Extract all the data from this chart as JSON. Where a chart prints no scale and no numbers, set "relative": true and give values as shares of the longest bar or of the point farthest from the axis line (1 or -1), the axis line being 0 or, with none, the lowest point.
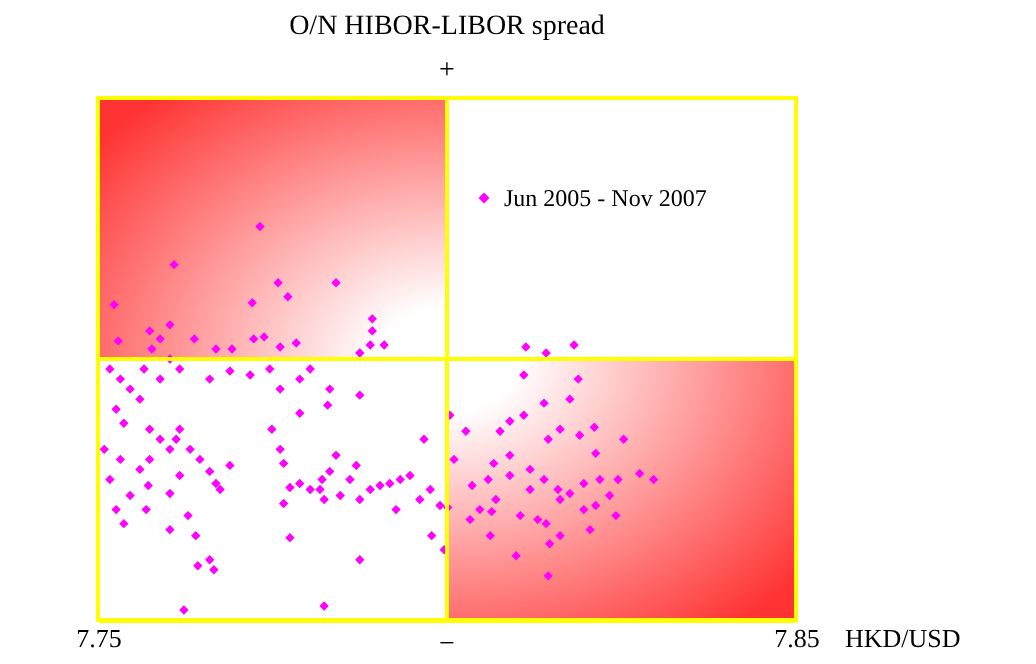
{
  "chart_data": {
    "type": "scatter",
    "relative": true,
    "xlabel": "HKD/USD",
    "xlim": [
      7.75,
      7.85
    ],
    "xticks": [
      7.75,
      7.85
    ],
    "marker": "diamond",
    "legend": "top right",
    "grid": false,
    "annotations": [
      "O/N HIBOR-LIBOR spread",
      "+",
      "−"
    ],
    "ref_lines": [
      {
        "axis": "x",
        "value": 7.8,
        "color": "#ffff00"
      },
      {
        "axis": "y",
        "value": 0,
        "color": "#ffff00"
      }
    ],
    "series": [
      {
        "name": "Jun 2005 - Nov 2007",
        "color": "#ff00ff",
        "x": [
          7.7732,
          7.7609,
          7.7523,
          7.7721,
          7.7574,
          7.7603,
          7.7577,
          7.7529,
          7.7589,
          7.7638,
          7.7669,
          7.7692,
          7.7723,
          7.7761,
          7.7758,
          7.7841,
          7.7772,
          7.7738,
          7.7784,
          7.7893,
          7.7893,
          7.789,
          7.791,
          7.7875,
          7.7517,
          7.7532,
          7.7546,
          7.756,
          7.7526,
          7.7537,
          7.7574,
          7.7509,
          7.7566,
          7.7589,
          7.7603,
          7.7617,
          7.766,
          7.7689,
          7.7718,
          7.7746,
          7.7761,
          7.7789,
          7.7804,
          7.7832,
          7.7589,
          7.7603,
          7.7617,
          7.7574,
          7.7532,
          7.756,
          7.7517,
          7.7546,
          7.7526,
          7.7537,
          7.7569,
          7.7572,
          7.7612,
          7.7632,
          7.7646,
          7.7617,
          7.7603,
          7.7629,
          7.7603,
          7.764,
          7.766,
          7.7643,
          7.7666,
          7.7623,
          7.7669,
          7.7675,
          7.766,
          7.7689,
          7.7749,
          7.7761,
          7.7766,
          7.7789,
          7.7804,
          7.7775,
          7.7818,
          7.7847,
          7.7875,
          7.7832,
          7.7861,
          7.789,
          7.7904,
          7.7918,
          7.7933,
          7.7947,
          7.7961,
          7.7976,
          7.799,
          7.8001,
          7.787,
          7.7841,
          7.7821,
          7.7766,
          7.7775,
          7.7875,
          7.7824,
          7.7927,
          7.7967,
          7.7978,
          7.7996,
          7.7824,
          7.7875,
          7.7829,
          7.7789,
          7.8113,
          7.8142,
          7.8182,
          7.811,
          7.8188,
          7.8004,
          7.8027,
          7.809,
          7.8139,
          7.8176,
          7.8076,
          7.8145,
          7.8162,
          7.8067,
          7.811,
          7.809,
          7.819,
          7.8211,
          7.8213,
          7.8219,
          7.8253,
          7.8213,
          7.8159,
          7.8139,
          7.8119,
          7.809,
          7.807,
          7.8047,
          7.8036,
          7.8119,
          7.8162,
          7.8105,
          7.8142,
          7.8176,
          7.8196,
          7.8245,
          7.8233,
          7.8276,
          7.8296,
          7.8059,
          7.801,
          7.8064,
          7.813,
          7.8162,
          7.8196,
          7.8147,
          7.8099,
          7.8033,
          7.8062,
          7.8145,
          7.8205,
          7.8242
        ],
        "values": [
          0.528,
          0.376,
          0.216,
          0.224,
          0.112,
          0.136,
          0.04,
          0.072,
          0.08,
          0.08,
          0.04,
          0.04,
          0.08,
          0.048,
          0.304,
          0.304,
          0.248,
          0.088,
          0.064,
          0.16,
          0.112,
          0.056,
          0.056,
          0.024,
          -0.04,
          -0.08,
          -0.12,
          -0.16,
          -0.2,
          -0.256,
          -0.28,
          -0.36,
          -0.04,
          -0.08,
          0,
          -0.04,
          -0.08,
          -0.048,
          -0.064,
          -0.04,
          -0.12,
          -0.08,
          -0.04,
          -0.12,
          -0.32,
          -0.36,
          -0.28,
          -0.4,
          -0.4,
          -0.44,
          -0.48,
          -0.544,
          -0.6,
          -0.656,
          -0.6,
          -0.504,
          -0.32,
          -0.36,
          -0.4,
          -0.464,
          -0.536,
          -0.624,
          -0.68,
          -0.704,
          -0.8,
          -0.824,
          -0.84,
          -1,
          -0.496,
          -0.52,
          -0.448,
          -0.424,
          -0.28,
          -0.36,
          -0.416,
          -0.496,
          -0.52,
          -0.512,
          -0.52,
          -0.544,
          -0.56,
          -0.448,
          -0.48,
          -0.52,
          -0.504,
          -0.496,
          -0.48,
          -0.464,
          -0.56,
          -0.52,
          -0.584,
          -0.592,
          -0.424,
          -0.384,
          -0.48,
          -0.576,
          -0.712,
          -0.8,
          -0.56,
          -0.6,
          -0.32,
          -0.704,
          -0.76,
          -0.984,
          -0.144,
          -0.184,
          -0.216,
          0.048,
          0.024,
          0.056,
          -0.064,
          -0.08,
          -0.224,
          -0.288,
          -0.248,
          -0.176,
          -0.16,
          -0.288,
          -0.32,
          -0.28,
          -0.416,
          -0.224,
          -0.384,
          -0.304,
          -0.272,
          -0.376,
          -0.48,
          -0.32,
          -0.584,
          -0.52,
          -0.48,
          -0.44,
          -0.464,
          -0.56,
          -0.6,
          -0.504,
          -0.52,
          -0.56,
          -0.624,
          -0.656,
          -0.536,
          -0.496,
          -0.48,
          -0.544,
          -0.456,
          -0.48,
          -0.48,
          -0.4,
          -0.608,
          -0.64,
          -0.704,
          -0.6,
          -0.736,
          -0.784,
          -0.64,
          -0.704,
          -0.864,
          -0.68,
          -0.624
        ]
      }
    ]
  }
}
